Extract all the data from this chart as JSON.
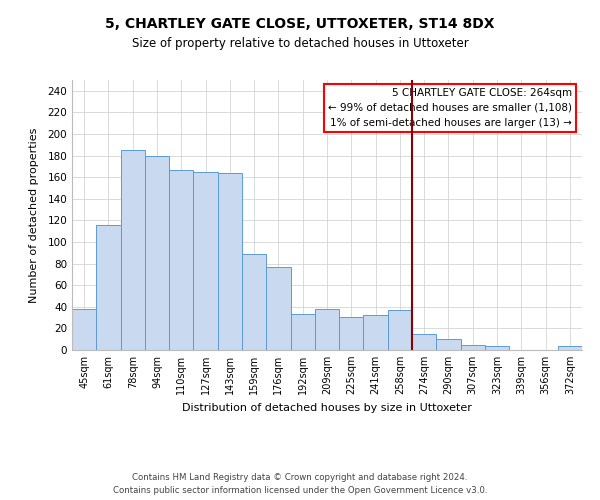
{
  "title": "5, CHARTLEY GATE CLOSE, UTTOXETER, ST14 8DX",
  "subtitle": "Size of property relative to detached houses in Uttoxeter",
  "xlabel": "Distribution of detached houses by size in Uttoxeter",
  "ylabel": "Number of detached properties",
  "bar_labels": [
    "45sqm",
    "61sqm",
    "78sqm",
    "94sqm",
    "110sqm",
    "127sqm",
    "143sqm",
    "159sqm",
    "176sqm",
    "192sqm",
    "209sqm",
    "225sqm",
    "241sqm",
    "258sqm",
    "274sqm",
    "290sqm",
    "307sqm",
    "323sqm",
    "339sqm",
    "356sqm",
    "372sqm"
  ],
  "bar_heights": [
    38,
    116,
    185,
    180,
    167,
    165,
    164,
    89,
    77,
    33,
    38,
    31,
    32,
    37,
    15,
    10,
    5,
    4,
    0,
    0,
    4
  ],
  "bar_color": "#c9daf0",
  "bar_edge_color": "#5b9bd5",
  "ylim": [
    0,
    250
  ],
  "yticks": [
    0,
    20,
    40,
    60,
    80,
    100,
    120,
    140,
    160,
    180,
    200,
    220,
    240
  ],
  "vline_x": 13.5,
  "vline_color": "#8b0000",
  "annotation_title": "5 CHARTLEY GATE CLOSE: 264sqm",
  "annotation_line1": "← 99% of detached houses are smaller (1,108)",
  "annotation_line2": "1% of semi-detached houses are larger (13) →",
  "footer1": "Contains HM Land Registry data © Crown copyright and database right 2024.",
  "footer2": "Contains public sector information licensed under the Open Government Licence v3.0.",
  "background_color": "#ffffff",
  "grid_color": "#cccccc"
}
